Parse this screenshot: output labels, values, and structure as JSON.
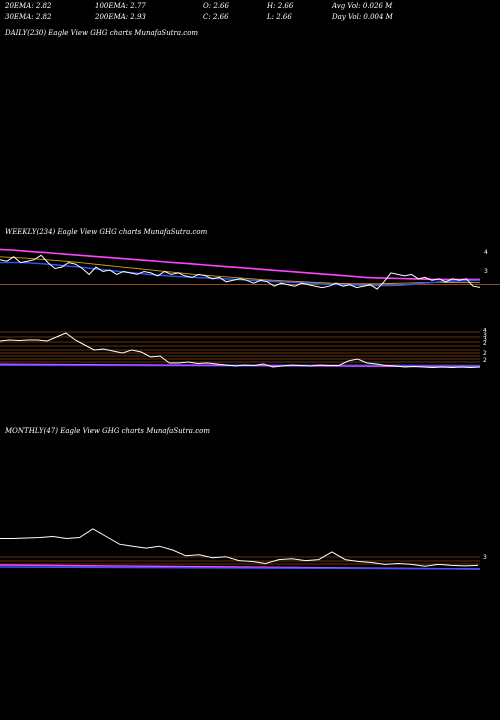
{
  "header": {
    "row1": [
      "20EMA: 2.82",
      "100EMA: 2.77",
      "O: 2.66",
      "H: 2.66",
      "Avg Vol: 0.026  M"
    ],
    "row2": [
      "30EMA: 2.82",
      "200EMA: 2.93",
      "C: 2.66",
      "L: 2.66",
      "Day Vol: 0.004  M"
    ]
  },
  "panels": {
    "daily_label": "DAILY(230) Eagle   View  GHG charts MunafaSutra.com",
    "weekly_label": "WEEKLY(234) Eagle   View  GHG charts MunafaSutra.com",
    "monthly_label": "MONTHLY(47) Eagle   View  GHG charts MunafaSutra.com"
  },
  "colors": {
    "background": "#000000",
    "price": "#ffffff",
    "ema_short": "#3355ff",
    "ema_long": "#ff44ff",
    "ema_mid": "#d4a017",
    "levels": "#c86414"
  },
  "chart_data": [
    {
      "type": "line",
      "name": "weekly",
      "y_ticks": [
        "4",
        "3"
      ],
      "price": [
        3.6,
        3.55,
        3.7,
        3.5,
        3.55,
        3.6,
        3.75,
        3.5,
        3.3,
        3.35,
        3.5,
        3.45,
        3.3,
        3.1,
        3.35,
        3.2,
        3.25,
        3.1,
        3.2,
        3.15,
        3.1,
        3.2,
        3.15,
        3.05,
        3.2,
        3.1,
        3.15,
        3.05,
        3.0,
        3.1,
        3.05,
        2.95,
        3.0,
        2.85,
        2.9,
        2.95,
        2.9,
        2.8,
        2.9,
        2.85,
        2.7,
        2.8,
        2.75,
        2.7,
        2.8,
        2.75,
        2.7,
        2.65,
        2.7,
        2.8,
        2.7,
        2.75,
        2.65,
        2.7,
        2.75,
        2.6,
        2.85,
        3.15,
        3.1,
        3.05,
        3.1,
        2.95,
        3.0,
        2.9,
        2.95,
        2.85,
        2.95,
        2.9,
        2.95,
        2.7,
        2.66
      ],
      "ema_short": [
        3.5,
        3.5,
        3.5,
        3.48,
        3.45,
        3.42,
        3.38,
        3.35,
        3.3,
        3.26,
        3.22,
        3.18,
        3.14,
        3.1,
        3.07,
        3.04,
        3.02,
        3.0,
        2.98,
        2.96,
        2.94,
        2.92,
        2.9,
        2.88,
        2.86,
        2.84,
        2.82,
        2.8,
        2.78,
        2.76,
        2.75,
        2.74,
        2.73,
        2.72,
        2.72,
        2.73,
        2.76,
        2.8,
        2.83,
        2.86,
        2.88,
        2.89,
        2.9
      ],
      "ema_long": [
        3.95,
        3.93,
        3.9,
        3.87,
        3.84,
        3.81,
        3.78,
        3.75,
        3.72,
        3.69,
        3.66,
        3.63,
        3.6,
        3.57,
        3.54,
        3.51,
        3.48,
        3.45,
        3.42,
        3.39,
        3.36,
        3.33,
        3.3,
        3.27,
        3.24,
        3.21,
        3.18,
        3.15,
        3.12,
        3.09,
        3.06,
        3.03,
        3.0,
        2.98,
        2.97,
        2.96,
        2.95,
        2.94,
        2.93,
        2.93,
        2.93,
        2.93,
        2.93
      ],
      "ema_mid": [
        3.7,
        3.68,
        3.66,
        3.63,
        3.6,
        3.57,
        3.54,
        3.5,
        3.46,
        3.42,
        3.38,
        3.34,
        3.3,
        3.26,
        3.22,
        3.18,
        3.14,
        3.1,
        3.07,
        3.04,
        3.01,
        2.98,
        2.95,
        2.92,
        2.9,
        2.88,
        2.86,
        2.84,
        2.82,
        2.8,
        2.79,
        2.78,
        2.78,
        2.78,
        2.79,
        2.8,
        2.81,
        2.82,
        2.82,
        2.82,
        2.82,
        2.82,
        2.82
      ],
      "levels": [
        3.0
      ]
    },
    {
      "type": "line",
      "name": "weekly-volume",
      "price": [
        5.2,
        5.3,
        5.25,
        5.3,
        5.3,
        5.2,
        5.6,
        6.0,
        5.3,
        4.8,
        4.3,
        4.4,
        4.2,
        4.0,
        4.3,
        4.1,
        3.6,
        3.7,
        3.0,
        3.0,
        3.1,
        2.95,
        3.0,
        2.9,
        2.8,
        2.7,
        2.8,
        2.75,
        2.9,
        2.6,
        2.7,
        2.8,
        2.75,
        2.7,
        2.8,
        2.75,
        2.75,
        3.2,
        3.4,
        3.0,
        2.9,
        2.75,
        2.7,
        2.6,
        2.65,
        2.6,
        2.55,
        2.6,
        2.55,
        2.6,
        2.55,
        2.6
      ]
    },
    {
      "type": "line",
      "name": "monthly",
      "y_ticks": [
        "3"
      ],
      "price": [
        4.8,
        4.8,
        4.85,
        4.9,
        5.0,
        4.8,
        4.9,
        5.8,
        5.0,
        4.2,
        4.0,
        3.8,
        4.0,
        3.6,
        3.0,
        3.1,
        2.8,
        2.9,
        2.5,
        2.4,
        2.2,
        2.6,
        2.7,
        2.5,
        2.6,
        3.4,
        2.6,
        2.4,
        2.3,
        2.1,
        2.2,
        2.1,
        1.9,
        2.1,
        2.0,
        1.95,
        2.0
      ],
      "levels": [
        3.0,
        2.8,
        2.5
      ]
    }
  ]
}
